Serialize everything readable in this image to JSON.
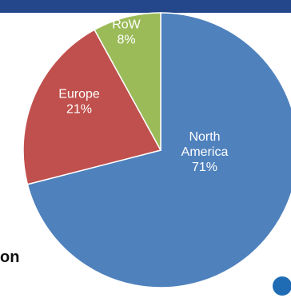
{
  "header_band_color": "#23478a",
  "caption": {
    "text": "on"
  },
  "chart_data": {
    "type": "pie",
    "slices": [
      {
        "label_lines": [
          "North",
          "America",
          "71%"
        ],
        "value": 71,
        "color": "#4f81bd"
      },
      {
        "label_lines": [
          "Europe",
          "21%"
        ],
        "value": 21,
        "color": "#c0504d"
      },
      {
        "label_lines": [
          "RoW",
          "8%"
        ],
        "value": 8,
        "color": "#9bbb59"
      }
    ],
    "start_angle_deg": 0,
    "direction": "clockwise",
    "legend": "none"
  },
  "corner_badge": {
    "icon": "circle-badge-icon",
    "color": "#1f6cb5"
  }
}
